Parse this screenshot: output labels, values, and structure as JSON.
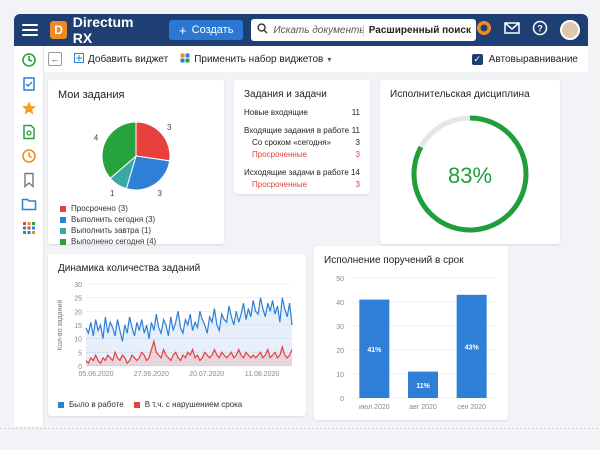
{
  "app": {
    "name": "Directum RX",
    "logo_letter": "D"
  },
  "header": {
    "create_label": "Создать",
    "search_placeholder": "Искать документы, задания, прочее",
    "advanced_search": "Расширенный поиск"
  },
  "toolbar": {
    "add_widget": "Добавить виджет",
    "apply_set": "Применить набор виджетов",
    "auto_align": "Автовыравнивание",
    "auto_align_checked": true
  },
  "my_tasks": {
    "title": "Мои задания",
    "slices": [
      {
        "label": "Просрочено (3)",
        "value": 3,
        "color": "#e8403c"
      },
      {
        "label": "Выполнить сегодня (3)",
        "value": 3,
        "color": "#2f7fd6"
      },
      {
        "label": "Выполнить завтра (1)",
        "value": 1,
        "color": "#3aa9a6"
      },
      {
        "label": "Выполнено сегодня (4)",
        "value": 4,
        "color": "#27a33d"
      }
    ],
    "slice_labels": [
      "3",
      "3",
      "1",
      "4"
    ]
  },
  "tasks_summary": {
    "title": "Задания и задачи",
    "rows": [
      {
        "label": "Новые входящие",
        "value": "11",
        "sub": false,
        "red": false
      },
      {
        "label": "Входящие задания в работе",
        "value": "11",
        "sub": false,
        "red": false
      },
      {
        "label": "Со сроком «сегодня»",
        "value": "3",
        "sub": true,
        "red": false
      },
      {
        "label": "Просроченные",
        "value": "3",
        "sub": true,
        "red": true
      },
      {
        "label": "Исходящие задачи в работе",
        "value": "14",
        "sub": false,
        "red": false
      },
      {
        "label": "Просроченные",
        "value": "3",
        "sub": true,
        "red": true
      }
    ]
  },
  "discipline": {
    "title": "Исполнительская дисциплина",
    "percent": 83,
    "percent_label": "83%",
    "color": "#1f9e3a"
  },
  "dynamics": {
    "title": "Динамика количества заданий",
    "legend": [
      {
        "label": "Было в работе",
        "color": "#2f7fd6"
      },
      {
        "label": "В т.ч. с нарушением срока",
        "color": "#e8403c"
      }
    ]
  },
  "chart_data": [
    {
      "type": "line",
      "title": "Динамика количества заданий",
      "ylabel": "Кол-во заданий",
      "xlabel": "",
      "ylim": [
        0,
        30
      ],
      "yticks": [
        "30",
        "25",
        "20",
        "15",
        "10",
        "5",
        "0"
      ],
      "xticks": [
        "05.06.2020",
        "27.06.2020",
        "20.07.2020",
        "11.08.2020"
      ],
      "series": [
        {
          "name": "Было в работе",
          "color": "#2f7fd6",
          "values": [
            14,
            12,
            16,
            11,
            17,
            13,
            15,
            10,
            18,
            12,
            16,
            14,
            11,
            17,
            13,
            9,
            15,
            12,
            18,
            14,
            11,
            16,
            13,
            17,
            12,
            15,
            10,
            16,
            13,
            19,
            14,
            12,
            17,
            15,
            11,
            18,
            13,
            16,
            20,
            14,
            12,
            17,
            15,
            19,
            13,
            16,
            14,
            20,
            17,
            15,
            12,
            18,
            16,
            21,
            15,
            13,
            19,
            17,
            16,
            22,
            18,
            15,
            20,
            16,
            19,
            23,
            17,
            21,
            18,
            24,
            20,
            19,
            25,
            21,
            18,
            23,
            20,
            24,
            19,
            22,
            16,
            25,
            21,
            18,
            23,
            15
          ]
        },
        {
          "name": "В т.ч. с нарушением срока",
          "color": "#e8403c",
          "values": [
            2,
            1,
            3,
            2,
            4,
            2,
            1,
            3,
            2,
            4,
            3,
            2,
            5,
            3,
            2,
            4,
            3,
            1,
            2,
            4,
            3,
            2,
            3,
            5,
            4,
            2,
            3,
            6,
            9,
            5,
            4,
            3,
            6,
            4,
            3,
            2,
            4,
            5,
            3,
            2,
            4,
            3,
            5,
            4,
            6,
            3,
            4,
            2,
            3,
            5,
            4,
            3,
            4,
            6,
            4,
            3,
            5,
            4,
            3,
            4,
            5,
            3,
            4,
            6,
            4,
            3,
            5,
            4,
            3,
            4,
            3,
            4,
            5,
            3,
            4,
            6,
            3,
            4,
            5,
            3,
            4,
            7,
            4,
            3,
            4,
            6
          ]
        }
      ]
    },
    {
      "type": "bar",
      "title": "Исполнение поручений в срок",
      "xlabel": "",
      "ylabel": "",
      "ylim": [
        0,
        50
      ],
      "yticks": [
        "50",
        "40",
        "30",
        "20",
        "10",
        "0"
      ],
      "categories": [
        "июл 2020",
        "авг 2020",
        "сен 2020"
      ],
      "values": [
        41,
        11,
        43
      ],
      "value_labels": [
        "41%",
        "11%",
        "43%"
      ],
      "color": "#2f7fd6"
    }
  ],
  "colors": {
    "header": "#1d3f74",
    "accent": "#2b78d4",
    "logo": "#f08a24"
  }
}
